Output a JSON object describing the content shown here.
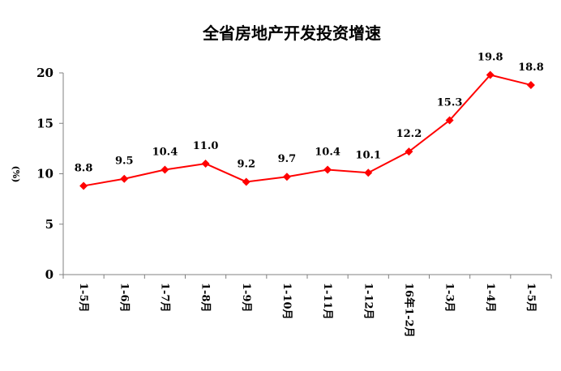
{
  "chart_data": {
    "type": "line",
    "title": "全省房地产开发投资增速",
    "y_label": "(%)",
    "categories": [
      "1-5月",
      "1-6月",
      "1-7月",
      "1-8月",
      "1-9月",
      "1-10月",
      "1-11月",
      "1-12月",
      "16年1-2月",
      "1-3月",
      "1-4月",
      "1-5月"
    ],
    "series": [
      {
        "name": "全省房地产开发投资增速",
        "color": "#ff0000",
        "values": [
          8.8,
          9.5,
          10.4,
          11.0,
          9.2,
          9.7,
          10.4,
          10.1,
          12.2,
          15.3,
          19.8,
          18.8
        ],
        "value_labels": [
          "8.8",
          "9.5",
          "10.4",
          "11.0",
          "9.2",
          "9.7",
          "10.4",
          "10.1",
          "12.2",
          "15.3",
          "19.8",
          "18.8"
        ]
      }
    ],
    "ylim": [
      0,
      20
    ],
    "yticks": [
      0,
      5,
      10,
      15,
      20
    ],
    "grid": false,
    "legend": false
  }
}
